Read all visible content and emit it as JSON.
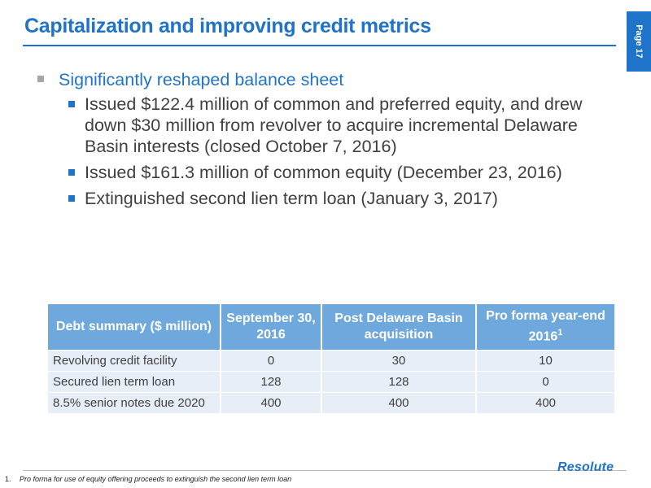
{
  "header": {
    "title": "Capitalization and improving credit metrics",
    "page_label": "Page 17",
    "accent_color": "#1f74c9"
  },
  "bullets": {
    "main": "Significantly reshaped balance sheet",
    "sub": [
      "Issued $122.4 million of common and preferred equity, and drew down $30 million from revolver to acquire incremental Delaware Basin interests (closed October 7, 2016)",
      "Issued $161.3 million of common equity (December 23, 2016)",
      "Extinguished second lien term loan (January 3, 2017)"
    ]
  },
  "table": {
    "headers": [
      "Debt summary ($ million)",
      "September 30, 2016",
      "Post Delaware Basin acquisition",
      "Pro forma year-end 2016"
    ],
    "header_superscript": "1",
    "rows": [
      [
        "Revolving credit facility",
        "0",
        "30",
        "10"
      ],
      [
        "Secured lien term loan",
        "128",
        "128",
        "0"
      ],
      [
        "8.5% senior notes due 2020",
        "400",
        "400",
        "400"
      ]
    ],
    "header_color": "#6fa8dc",
    "row_color": "#e7eef7"
  },
  "footer": {
    "footnote_number": "1.",
    "footnote_text": "Pro forma for use of equity offering proceeds to extinguish the second lien term loan",
    "logo_text": "Resolute"
  }
}
